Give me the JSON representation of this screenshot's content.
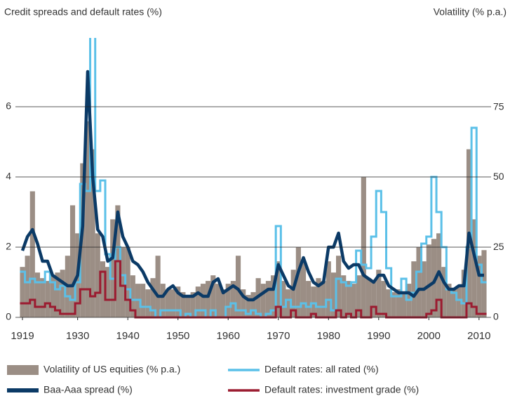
{
  "chart_data": {
    "type": "line",
    "y_label": "Credit spreads and default rates (%)",
    "y2_label": "Volatility (% p.a.)",
    "x": [
      1919,
      1920,
      1921,
      1922,
      1923,
      1924,
      1925,
      1926,
      1927,
      1928,
      1929,
      1930,
      1931,
      1932,
      1933,
      1934,
      1935,
      1936,
      1937,
      1938,
      1939,
      1940,
      1941,
      1942,
      1943,
      1944,
      1945,
      1946,
      1947,
      1948,
      1949,
      1950,
      1951,
      1952,
      1953,
      1954,
      1955,
      1956,
      1957,
      1958,
      1959,
      1960,
      1961,
      1962,
      1963,
      1964,
      1965,
      1966,
      1967,
      1968,
      1969,
      1970,
      1971,
      1972,
      1973,
      1974,
      1975,
      1976,
      1977,
      1978,
      1979,
      1980,
      1981,
      1982,
      1983,
      1984,
      1985,
      1986,
      1987,
      1988,
      1989,
      1990,
      1991,
      1992,
      1993,
      1994,
      1995,
      1996,
      1997,
      1998,
      1999,
      2000,
      2001,
      2002,
      2003,
      2004,
      2005,
      2006,
      2007,
      2008,
      2009,
      2010,
      2011
    ],
    "xlim": [
      1919,
      2011
    ],
    "xticks": [
      1919,
      1930,
      1940,
      1950,
      1960,
      1970,
      1980,
      1990,
      2000,
      2010
    ],
    "ylim": [
      0,
      7.9
    ],
    "yticks": [
      0,
      2,
      4,
      6
    ],
    "y2lim": [
      0,
      99
    ],
    "y2ticks": [
      0,
      25,
      50,
      75
    ],
    "grid": true,
    "legend": "bottom",
    "series": [
      {
        "name": "Volatility of US equities (% p.a.)",
        "color": "#9b8e85",
        "axis": "y2",
        "style": "bars",
        "values": [
          18,
          22,
          45,
          16,
          14,
          13,
          15,
          16,
          17,
          22,
          40,
          30,
          55,
          70,
          60,
          30,
          20,
          18,
          35,
          40,
          25,
          25,
          15,
          12,
          12,
          10,
          14,
          22,
          12,
          10,
          10,
          11,
          9,
          8,
          9,
          11,
          12,
          13,
          15,
          12,
          10,
          12,
          13,
          22,
          10,
          8,
          9,
          14,
          12,
          13,
          15,
          20,
          13,
          10,
          17,
          25,
          20,
          13,
          11,
          14,
          13,
          20,
          16,
          22,
          15,
          13,
          12,
          15,
          50,
          14,
          13,
          17,
          13,
          10,
          9,
          10,
          9,
          12,
          20,
          25,
          20,
          26,
          28,
          30,
          18,
          12,
          10,
          11,
          17,
          60,
          35,
          22,
          24
        ]
      },
      {
        "name": "Default rates: all rated (%)",
        "color": "#5bc0e8",
        "style": "step",
        "values": [
          1.3,
          1.0,
          1.1,
          1.0,
          1.0,
          1.3,
          1.0,
          0.8,
          0.9,
          0.6,
          0.5,
          1.0,
          3.8,
          3.6,
          8.4,
          3.6,
          3.9,
          1.8,
          1.1,
          2.0,
          1.2,
          0.8,
          0.5,
          0.5,
          0.3,
          0.3,
          0.2,
          0,
          0.2,
          0.2,
          0.2,
          0.2,
          0,
          0.1,
          0,
          0.2,
          0.2,
          0,
          0.2,
          0,
          0,
          0.3,
          0.4,
          0.2,
          0.2,
          0.1,
          0.2,
          0.1,
          0,
          0.1,
          0.2,
          2.6,
          0.3,
          0.5,
          0.3,
          0.3,
          0.4,
          0.3,
          0.4,
          0.3,
          0.3,
          0.5,
          0.2,
          1.1,
          1.0,
          0.9,
          1.0,
          1.9,
          1.5,
          1.4,
          2.3,
          3.6,
          3.0,
          1.4,
          0.6,
          0.6,
          1.1,
          0.5,
          0.7,
          1.3,
          2.1,
          2.3,
          4.0,
          3.0,
          2.0,
          0.8,
          0.7,
          0.5,
          0.4,
          2.0,
          5.4,
          1.5,
          1.0
        ]
      },
      {
        "name": "Baa-Aaa spread (%)",
        "color": "#0b3a66",
        "style": "line",
        "values": [
          1.9,
          2.3,
          2.5,
          2.1,
          1.6,
          1.6,
          1.2,
          1.1,
          1.0,
          0.9,
          0.9,
          1.2,
          2.6,
          7.0,
          4.0,
          2.5,
          2.3,
          1.6,
          1.7,
          3.0,
          2.3,
          2.0,
          1.6,
          1.5,
          1.3,
          1.0,
          0.8,
          0.6,
          0.6,
          0.8,
          0.9,
          0.7,
          0.6,
          0.6,
          0.6,
          0.7,
          0.6,
          0.6,
          1.0,
          1.1,
          0.7,
          0.8,
          0.9,
          0.8,
          0.6,
          0.5,
          0.5,
          0.6,
          0.7,
          0.8,
          0.8,
          1.5,
          1.2,
          0.9,
          0.8,
          1.3,
          1.7,
          1.3,
          1.0,
          0.9,
          1.0,
          2.0,
          2.0,
          2.4,
          1.6,
          1.4,
          1.5,
          1.5,
          1.2,
          1.1,
          1.0,
          1.2,
          1.2,
          0.9,
          0.8,
          0.7,
          0.7,
          0.7,
          0.6,
          0.8,
          0.8,
          0.9,
          1.0,
          1.3,
          1.0,
          0.8,
          0.8,
          0.9,
          0.9,
          2.4,
          1.8,
          1.2,
          1.2
        ]
      },
      {
        "name": "Default rates: investment grade (%)",
        "color": "#9b1b30",
        "style": "step",
        "values": [
          0.4,
          0.4,
          0.5,
          0.3,
          0.3,
          0.4,
          0.3,
          0.2,
          0.1,
          0.1,
          0.1,
          0.4,
          0.8,
          0.8,
          0.6,
          0.7,
          1.3,
          0.5,
          0.5,
          1.6,
          0.9,
          0.5,
          0.2,
          0,
          0,
          0,
          0,
          0,
          0,
          0,
          0,
          0,
          0,
          0,
          0,
          0,
          0,
          0,
          0,
          0,
          0,
          0,
          0,
          0,
          0,
          0,
          0,
          0,
          0,
          0,
          0,
          0.3,
          0,
          0,
          0.2,
          0,
          0,
          0,
          0.1,
          0,
          0,
          0,
          0,
          0.2,
          0,
          0.1,
          0,
          0.2,
          0,
          0,
          0.3,
          0.1,
          0.1,
          0,
          0,
          0,
          0,
          0,
          0,
          0,
          0,
          0.1,
          0.2,
          0.5,
          0,
          0,
          0,
          0,
          0,
          0.4,
          0.3,
          0.1,
          0.1
        ]
      }
    ]
  }
}
